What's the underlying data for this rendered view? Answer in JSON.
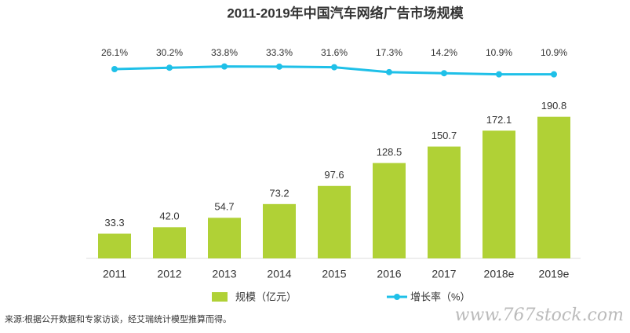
{
  "chart_data": {
    "type": "bar",
    "title": "2011-2019年中国汽车网络广告市场规模",
    "categories": [
      "2011",
      "2012",
      "2013",
      "2014",
      "2015",
      "2016",
      "2017",
      "2018e",
      "2019e"
    ],
    "series": [
      {
        "name": "规模（亿元）",
        "type": "bar",
        "color": "#b0d136",
        "values": [
          33.3,
          42.0,
          54.7,
          73.2,
          97.6,
          128.5,
          150.7,
          172.1,
          190.8
        ],
        "value_labels": [
          "33.3",
          "42.0",
          "54.7",
          "73.2",
          "97.6",
          "128.5",
          "150.7",
          "172.1",
          "190.8"
        ]
      },
      {
        "name": "增长率（%）",
        "type": "line",
        "axis": "y2",
        "color": "#1fc0e8",
        "values": [
          26.1,
          30.2,
          33.8,
          33.3,
          31.6,
          17.3,
          14.2,
          10.9,
          10.9
        ],
        "value_labels": [
          "26.1%",
          "30.2%",
          "33.8%",
          "33.3%",
          "31.6%",
          "17.3%",
          "14.2%",
          "10.9%",
          "10.9%"
        ]
      }
    ],
    "ylim": [
      0,
      200
    ],
    "y2lim": [
      0,
      100
    ],
    "source": "来源:根据公开数据和专家访谈，经艾瑞统计模型推算而得。",
    "watermark": "www.767stock.com"
  }
}
